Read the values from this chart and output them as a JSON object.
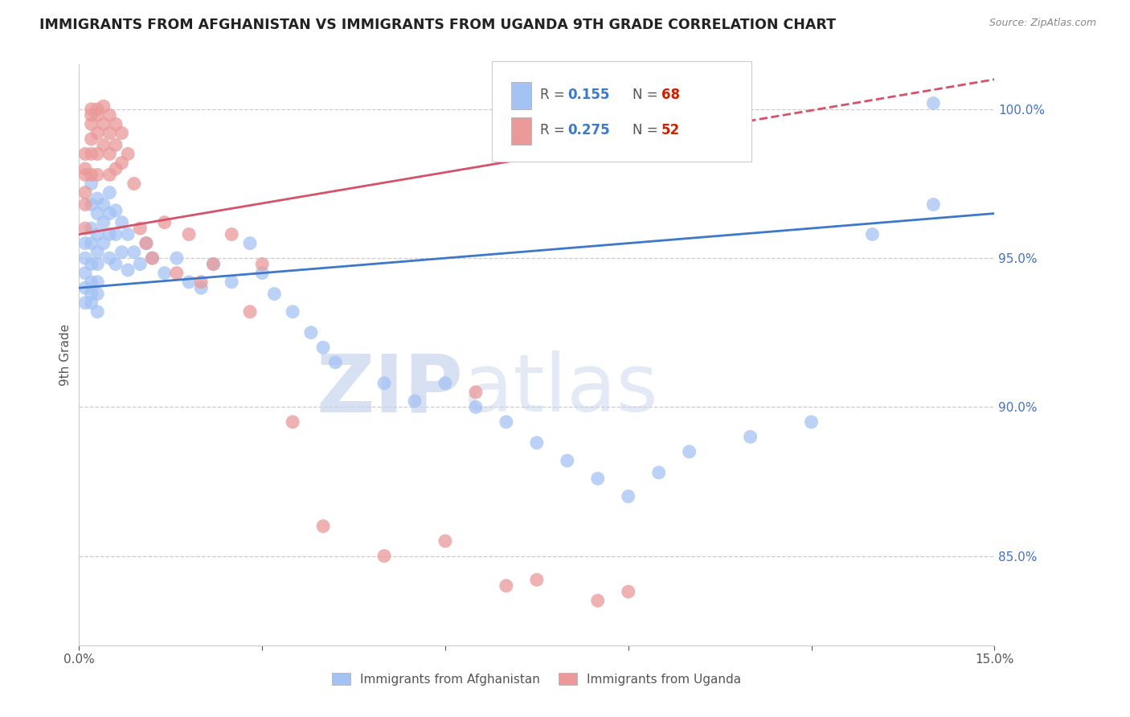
{
  "title": "IMMIGRANTS FROM AFGHANISTAN VS IMMIGRANTS FROM UGANDA 9TH GRADE CORRELATION CHART",
  "source": "Source: ZipAtlas.com",
  "ylabel": "9th Grade",
  "xlim": [
    0.0,
    0.15
  ],
  "ylim": [
    0.82,
    1.015
  ],
  "afghanistan_color": "#a4c2f4",
  "uganda_color": "#ea9999",
  "trend_blue": "#3d78c9",
  "trend_pink": "#d5526a",
  "legend_R_color": "#3d78c9",
  "legend_N_color": "#cc2200",
  "watermark_zip": "ZIP",
  "watermark_atlas": "atlas",
  "watermark_color": "#d0dff5",
  "afghanistan_x": [
    0.001,
    0.001,
    0.001,
    0.001,
    0.001,
    0.002,
    0.002,
    0.002,
    0.002,
    0.002,
    0.002,
    0.002,
    0.002,
    0.003,
    0.003,
    0.003,
    0.003,
    0.003,
    0.003,
    0.003,
    0.003,
    0.004,
    0.004,
    0.004,
    0.005,
    0.005,
    0.005,
    0.005,
    0.006,
    0.006,
    0.006,
    0.007,
    0.007,
    0.008,
    0.008,
    0.009,
    0.01,
    0.011,
    0.012,
    0.014,
    0.016,
    0.018,
    0.02,
    0.022,
    0.025,
    0.028,
    0.03,
    0.032,
    0.035,
    0.038,
    0.04,
    0.042,
    0.05,
    0.055,
    0.06,
    0.065,
    0.07,
    0.075,
    0.08,
    0.085,
    0.09,
    0.095,
    0.1,
    0.11,
    0.12,
    0.13,
    0.14,
    0.14
  ],
  "afghanistan_y": [
    0.955,
    0.95,
    0.945,
    0.94,
    0.935,
    0.975,
    0.968,
    0.96,
    0.955,
    0.948,
    0.942,
    0.938,
    0.935,
    0.97,
    0.965,
    0.958,
    0.952,
    0.948,
    0.942,
    0.938,
    0.932,
    0.968,
    0.962,
    0.955,
    0.972,
    0.965,
    0.958,
    0.95,
    0.966,
    0.958,
    0.948,
    0.962,
    0.952,
    0.958,
    0.946,
    0.952,
    0.948,
    0.955,
    0.95,
    0.945,
    0.95,
    0.942,
    0.94,
    0.948,
    0.942,
    0.955,
    0.945,
    0.938,
    0.932,
    0.925,
    0.92,
    0.915,
    0.908,
    0.902,
    0.908,
    0.9,
    0.895,
    0.888,
    0.882,
    0.876,
    0.87,
    0.878,
    0.885,
    0.89,
    0.895,
    0.958,
    0.968,
    1.002
  ],
  "uganda_x": [
    0.001,
    0.001,
    0.001,
    0.001,
    0.001,
    0.001,
    0.002,
    0.002,
    0.002,
    0.002,
    0.002,
    0.002,
    0.003,
    0.003,
    0.003,
    0.003,
    0.003,
    0.004,
    0.004,
    0.004,
    0.005,
    0.005,
    0.005,
    0.005,
    0.006,
    0.006,
    0.006,
    0.007,
    0.007,
    0.008,
    0.009,
    0.01,
    0.011,
    0.012,
    0.014,
    0.016,
    0.018,
    0.02,
    0.022,
    0.025,
    0.028,
    0.03,
    0.035,
    0.04,
    0.05,
    0.06,
    0.065,
    0.07,
    0.075,
    0.085,
    0.09,
    0.1
  ],
  "uganda_y": [
    0.985,
    0.98,
    0.978,
    0.972,
    0.968,
    0.96,
    1.0,
    0.998,
    0.995,
    0.99,
    0.985,
    0.978,
    1.0,
    0.998,
    0.992,
    0.985,
    0.978,
    1.001,
    0.995,
    0.988,
    0.998,
    0.992,
    0.985,
    0.978,
    0.995,
    0.988,
    0.98,
    0.992,
    0.982,
    0.985,
    0.975,
    0.96,
    0.955,
    0.95,
    0.962,
    0.945,
    0.958,
    0.942,
    0.948,
    0.958,
    0.932,
    0.948,
    0.895,
    0.86,
    0.85,
    0.855,
    0.905,
    0.84,
    0.842,
    0.835,
    0.838,
    1.001
  ],
  "trend_af_x0": 0.0,
  "trend_af_y0": 0.94,
  "trend_af_x1": 0.15,
  "trend_af_y1": 0.965,
  "trend_ug_x0": 0.0,
  "trend_ug_y0": 0.958,
  "trend_ug_x1": 0.15,
  "trend_ug_y1": 1.01,
  "trend_ug_solid_end": 0.1
}
